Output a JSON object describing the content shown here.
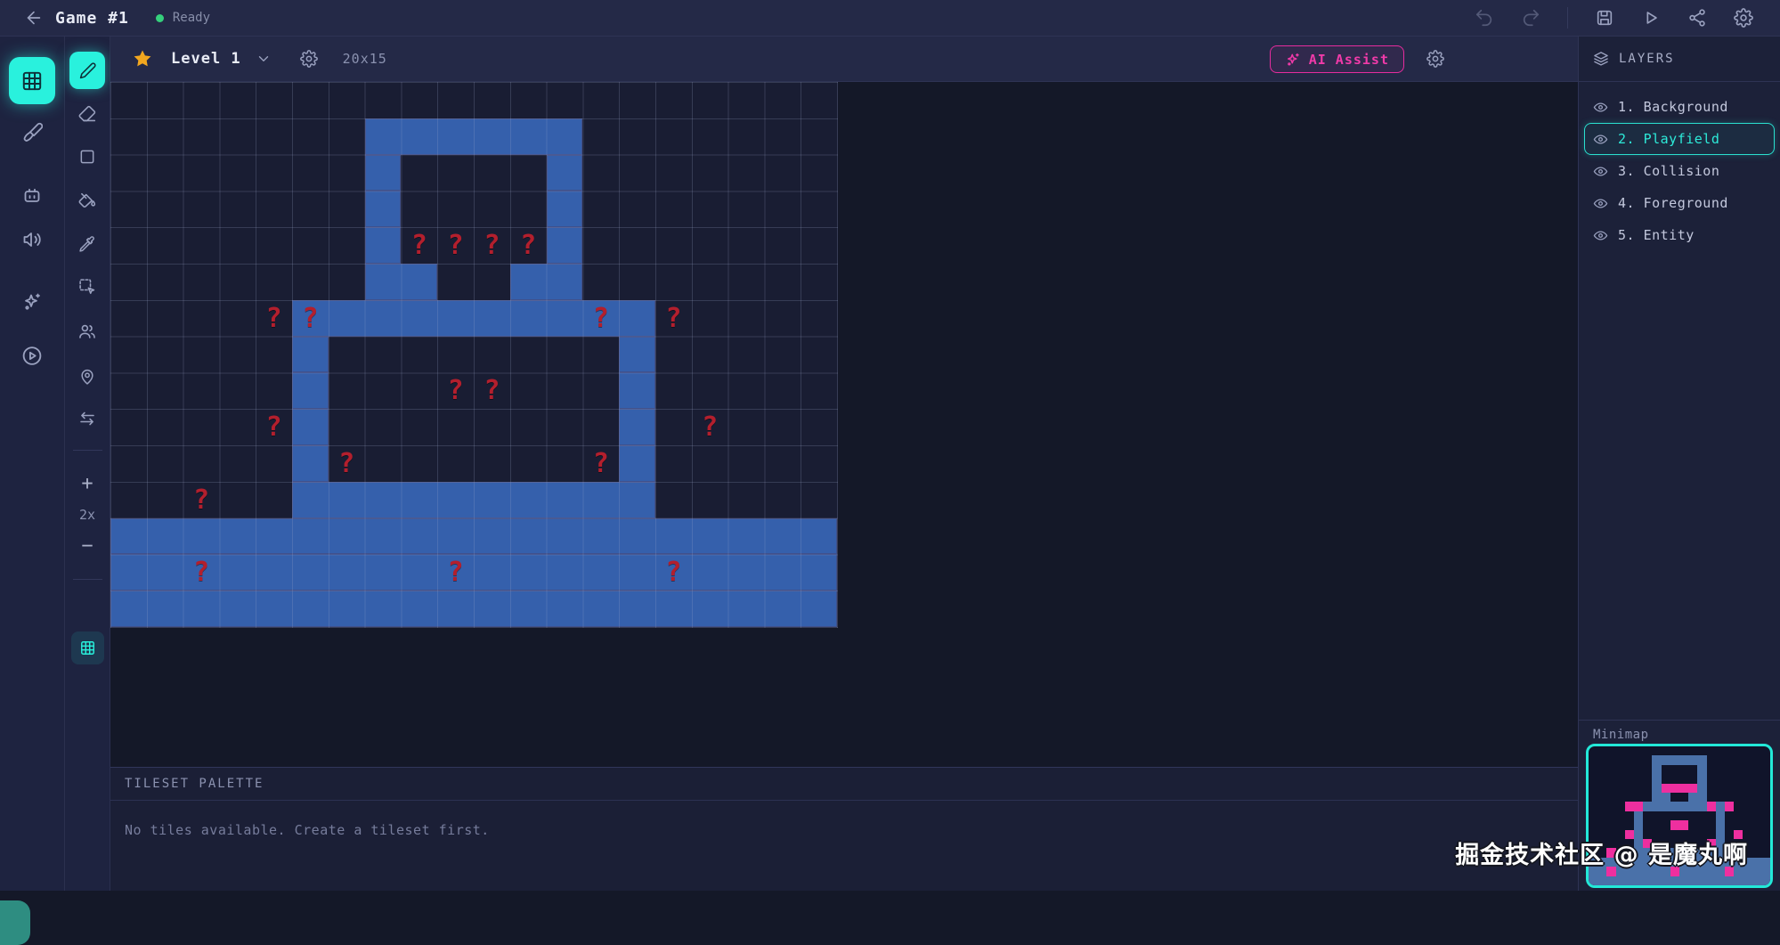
{
  "top_bar": {
    "title": "Game #1",
    "status": "Ready"
  },
  "toolbar": {
    "level_label": "Level 1",
    "size_label": "20x15",
    "ai_assist_label": "AI Assist"
  },
  "tool_column": {
    "zoom_level": "2x",
    "zoom_in": "+",
    "zoom_out": "−"
  },
  "layers_panel": {
    "header": "LAYERS",
    "active_index": 1,
    "layers": [
      {
        "label": "1. Background"
      },
      {
        "label": "2. Playfield"
      },
      {
        "label": "3. Collision"
      },
      {
        "label": "4. Foreground"
      },
      {
        "label": "5. Entity"
      }
    ],
    "minimap_label": "Minimap"
  },
  "tileset_palette": {
    "header": "TILESET PALETTE",
    "empty_message": "No tiles available. Create a tileset first."
  },
  "canvas": {
    "grid_cols": 20,
    "grid_rows": 15,
    "cell_size": 40.8,
    "tile_color": "#3560ac",
    "question_color": "#b31f2d",
    "minimap_tile_color": "#4a71a9",
    "minimap_question_color": "#ee2f9f",
    "question_glyph": "?",
    "blue_runs": [
      [
        1,
        7,
        12
      ],
      [
        2,
        7,
        7
      ],
      [
        2,
        12,
        12
      ],
      [
        3,
        7,
        7
      ],
      [
        3,
        12,
        12
      ],
      [
        4,
        7,
        7
      ],
      [
        4,
        12,
        12
      ],
      [
        5,
        7,
        8
      ],
      [
        5,
        11,
        12
      ],
      [
        6,
        5,
        14
      ],
      [
        7,
        5,
        5
      ],
      [
        7,
        14,
        14
      ],
      [
        8,
        5,
        5
      ],
      [
        8,
        14,
        14
      ],
      [
        9,
        5,
        5
      ],
      [
        9,
        14,
        14
      ],
      [
        10,
        5,
        5
      ],
      [
        10,
        14,
        14
      ],
      [
        11,
        5,
        14
      ],
      [
        12,
        0,
        19
      ],
      [
        13,
        0,
        19
      ],
      [
        14,
        0,
        19
      ]
    ],
    "question_marks": [
      [
        4,
        8
      ],
      [
        4,
        9
      ],
      [
        4,
        10
      ],
      [
        4,
        11
      ],
      [
        6,
        4
      ],
      [
        6,
        5
      ],
      [
        6,
        13
      ],
      [
        6,
        15
      ],
      [
        8,
        9
      ],
      [
        8,
        10
      ],
      [
        9,
        4
      ],
      [
        9,
        16
      ],
      [
        10,
        6
      ],
      [
        10,
        13
      ],
      [
        11,
        2
      ],
      [
        13,
        2
      ],
      [
        13,
        9
      ],
      [
        13,
        15
      ]
    ]
  },
  "watermark": "掘金技术社区 @ 是魔丸啊",
  "accent_colors": {
    "cyan": "#29f1dd",
    "magenta": "#e62c9e",
    "gold": "#f2a71f",
    "green": "#35d07c"
  }
}
